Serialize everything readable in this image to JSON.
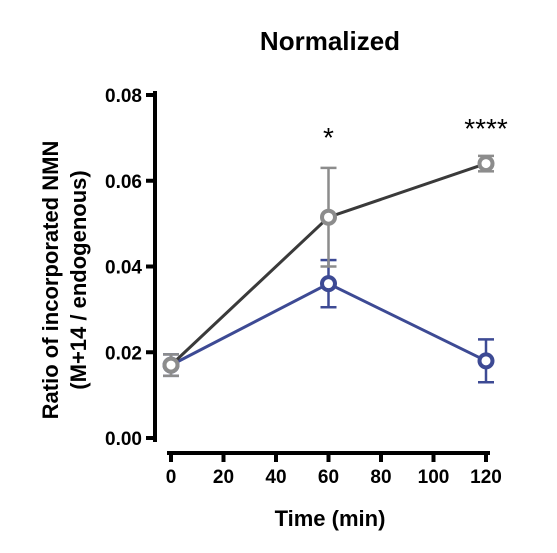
{
  "chart_data": {
    "type": "line",
    "title": "Normalized",
    "xlabel": "Time (min)",
    "ylabel_lines": [
      "Ratio of incorporated NMN",
      "(M+14 / endogenous)"
    ],
    "xlim": [
      0,
      120
    ],
    "ylim": [
      0,
      0.08
    ],
    "x_ticks": [
      0,
      20,
      40,
      60,
      80,
      100,
      120
    ],
    "y_ticks": [
      0.0,
      0.02,
      0.04,
      0.06,
      0.08
    ],
    "y_tick_labels": [
      "0.00",
      "0.02",
      "0.04",
      "0.06",
      "0.08"
    ],
    "grid": false,
    "series": [
      {
        "color": "#3d4a94",
        "marker_color": "#3d4a94",
        "x": [
          0,
          60,
          120
        ],
        "y": [
          0.017,
          0.036,
          0.018
        ],
        "err": [
          0.0025,
          0.0055,
          0.005
        ]
      },
      {
        "color": "#3a3a3a",
        "marker_color": "#8c8c8c",
        "x": [
          0,
          60,
          120
        ],
        "y": [
          0.017,
          0.0515,
          0.064
        ],
        "err": [
          0.0025,
          0.0115,
          0.0018
        ]
      }
    ],
    "annotations": [
      {
        "x": 60,
        "text": "*"
      },
      {
        "x": 120,
        "text": "****"
      }
    ]
  }
}
